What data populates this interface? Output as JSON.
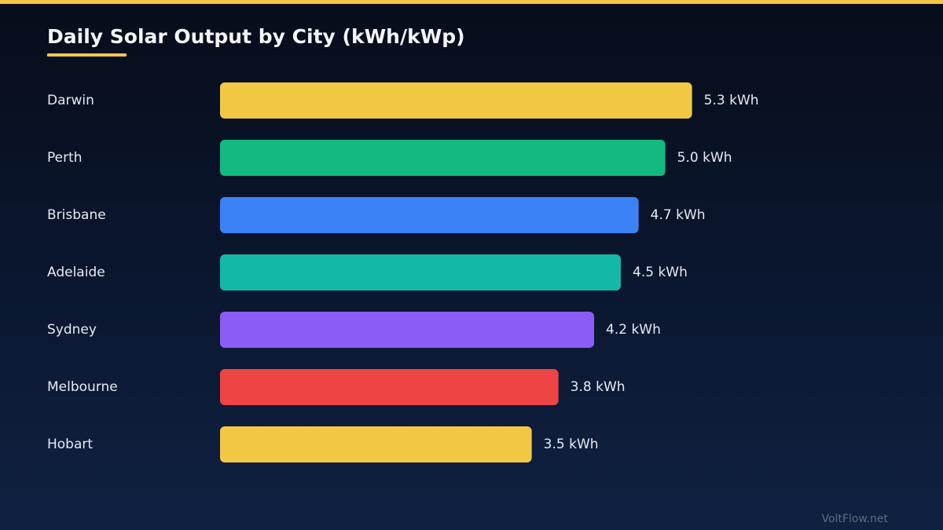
{
  "chart_data": {
    "type": "bar",
    "orientation": "horizontal",
    "title": "Daily Solar Output by City (kWh/kWp)",
    "categories": [
      "Darwin",
      "Perth",
      "Brisbane",
      "Adelaide",
      "Sydney",
      "Melbourne",
      "Hobart"
    ],
    "values": [
      5.3,
      5.0,
      4.7,
      4.5,
      4.2,
      3.8,
      3.5
    ],
    "value_labels": [
      "5.3 kWh",
      "5.0 kWh",
      "4.7 kWh",
      "4.5 kWh",
      "4.2 kWh",
      "3.8 kWh",
      "3.5 kWh"
    ],
    "colors": [
      "#f2c744",
      "#13b981",
      "#3b82f6",
      "#14b8a6",
      "#8b5cf6",
      "#ef4444",
      "#f2c744"
    ],
    "xlim": [
      0,
      10.5
    ],
    "grid": false,
    "legend": "none"
  },
  "accent_color": "#f2c744",
  "watermark": "VoltFlow.net"
}
